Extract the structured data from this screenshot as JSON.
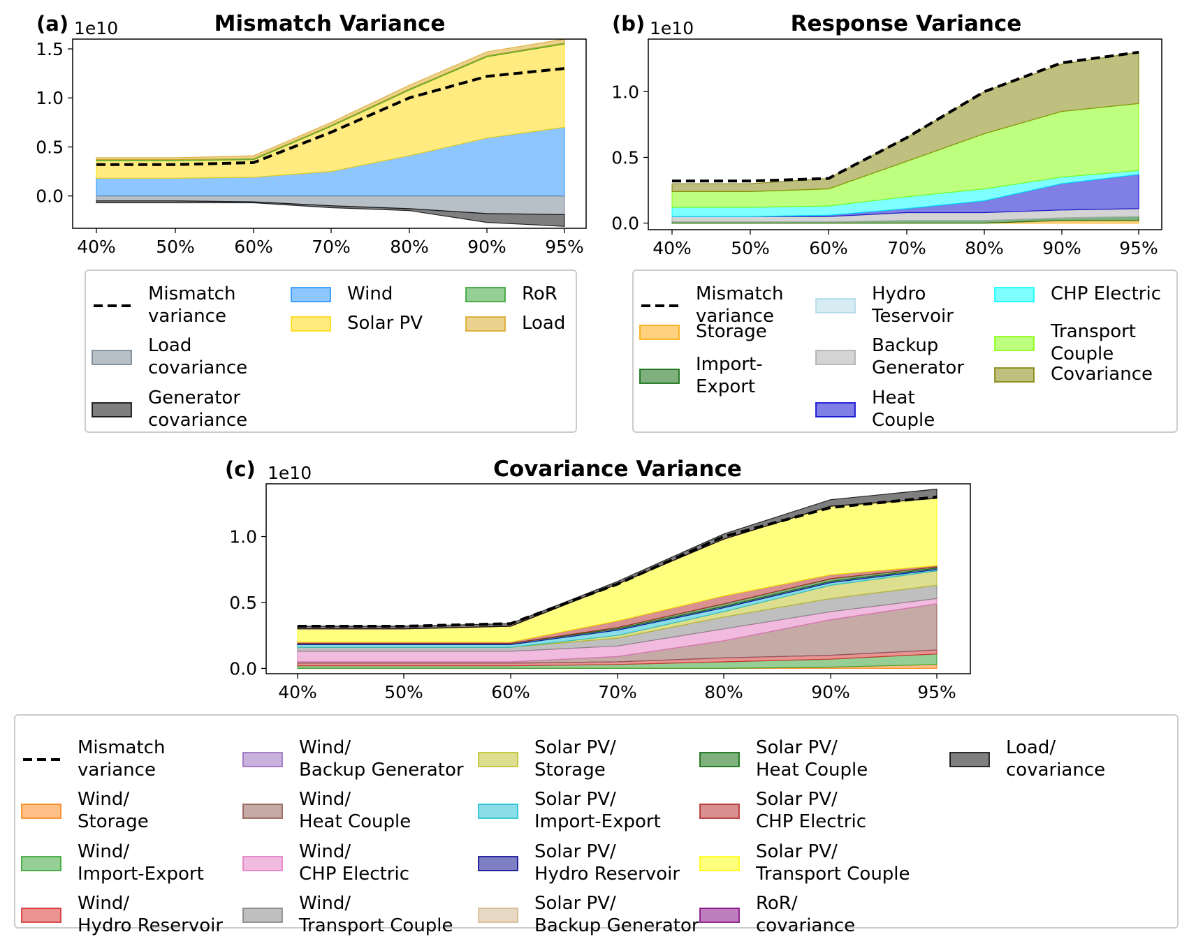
{
  "chart_data": [
    {
      "panel_label": "(a)",
      "type": "area",
      "title": "Mismatch Variance",
      "offset_text": "1e10",
      "x": [
        "40%",
        "50%",
        "60%",
        "70%",
        "80%",
        "90%",
        "95%"
      ],
      "ylim": [
        -0.33,
        1.6
      ],
      "yticks": [
        "0.0",
        "0.5",
        "1.0",
        "1.5"
      ],
      "ytick_values": [
        0.0,
        0.5,
        1.0,
        1.5
      ],
      "grid": false,
      "legend_position": "below",
      "legend_columns": 3,
      "line": {
        "name": "Mismatch\nvariance",
        "values": [
          0.32,
          0.32,
          0.34,
          0.65,
          1.0,
          1.22,
          1.3
        ],
        "color": "#000000"
      },
      "series": [
        {
          "name": "Wind",
          "color": "#1e90ff",
          "values": [
            0.18,
            0.18,
            0.19,
            0.25,
            0.41,
            0.59,
            0.7
          ]
        },
        {
          "name": "Solar PV",
          "color": "#ffd700",
          "values": [
            0.18,
            0.18,
            0.18,
            0.46,
            0.67,
            0.83,
            0.85
          ]
        },
        {
          "name": "RoR",
          "color": "#2ca02c",
          "values": [
            0.01,
            0.01,
            0.01,
            0.01,
            0.01,
            0.01,
            0.01
          ]
        },
        {
          "name": "Load",
          "color": "#daa520",
          "values": [
            0.02,
            0.02,
            0.03,
            0.03,
            0.04,
            0.04,
            0.04
          ]
        },
        {
          "name": "Load\ncovariance",
          "color": "#708090",
          "values": [
            -0.05,
            -0.05,
            -0.06,
            -0.1,
            -0.13,
            -0.18,
            -0.19
          ],
          "negative": true
        },
        {
          "name": "Generator\ncovariance",
          "color": "#000000",
          "values": [
            -0.02,
            -0.02,
            -0.01,
            -0.02,
            -0.02,
            -0.09,
            -0.12
          ],
          "negative": true
        }
      ],
      "legend_order": [
        "Mismatch\nvariance",
        "Load\ncovariance",
        "Generator\ncovariance",
        "Wind",
        "Solar PV",
        "RoR",
        "Load"
      ]
    },
    {
      "panel_label": "(b)",
      "type": "area",
      "title": "Response Variance",
      "offset_text": "1e10",
      "x": [
        "40%",
        "50%",
        "60%",
        "70%",
        "80%",
        "90%",
        "95%"
      ],
      "ylim": [
        -0.05,
        1.4
      ],
      "yticks": [
        "0.0",
        "0.5",
        "1.0"
      ],
      "ytick_values": [
        0.0,
        0.5,
        1.0
      ],
      "grid": false,
      "legend_position": "below",
      "legend_columns": 3,
      "line": {
        "name": "Mismatch\nvariance",
        "values": [
          0.32,
          0.32,
          0.34,
          0.65,
          1.0,
          1.22,
          1.3
        ],
        "color": "#000000"
      },
      "series": [
        {
          "name": "Storage",
          "color": "#ffa500",
          "values": [
            0.0,
            0.0,
            0.0,
            0.0,
            0.0,
            0.02,
            0.02
          ]
        },
        {
          "name": "Import-\nExport",
          "color": "#006400",
          "values": [
            0.01,
            0.01,
            0.01,
            0.02,
            0.02,
            0.02,
            0.03
          ]
        },
        {
          "name": "Hydro\nTeservoir",
          "color": "#add8e6",
          "values": [
            0.0,
            0.0,
            0.0,
            0.0,
            0.0,
            0.0,
            0.0
          ]
        },
        {
          "name": "Backup\nGenerator",
          "color": "#a9a9a9",
          "values": [
            0.04,
            0.04,
            0.04,
            0.06,
            0.06,
            0.06,
            0.06
          ]
        },
        {
          "name": "Heat\nCouple",
          "color": "#0000cd",
          "values": [
            0.0,
            0.0,
            0.01,
            0.03,
            0.09,
            0.2,
            0.26
          ]
        },
        {
          "name": "CHP Electric",
          "color": "#00ffff",
          "values": [
            0.07,
            0.07,
            0.07,
            0.09,
            0.09,
            0.05,
            0.03
          ]
        },
        {
          "name": "Transport\nCouple",
          "color": "#7fff00",
          "values": [
            0.12,
            0.12,
            0.13,
            0.27,
            0.42,
            0.5,
            0.51
          ]
        },
        {
          "name": "Covariance",
          "color": "#808000",
          "values": [
            0.06,
            0.06,
            0.08,
            0.18,
            0.32,
            0.36,
            0.39
          ]
        }
      ],
      "legend_order": [
        "Mismatch\nvariance",
        "Storage",
        "Import-\nExport",
        "Hydro\nTeservoir",
        "Backup\nGenerator",
        "Heat\nCouple",
        "CHP Electric",
        "Transport\nCouple",
        "Covariance"
      ]
    },
    {
      "panel_label": "(c)",
      "type": "area",
      "title": "Covariance Variance",
      "offset_text": "1e10",
      "x": [
        "40%",
        "50%",
        "60%",
        "70%",
        "80%",
        "90%",
        "95%"
      ],
      "ylim": [
        -0.04,
        1.4
      ],
      "yticks": [
        "0.0",
        "0.5",
        "1.0"
      ],
      "ytick_values": [
        0.0,
        0.5,
        1.0
      ],
      "grid": false,
      "legend_position": "below",
      "legend_columns": 5,
      "line": {
        "name": "Mismatch\nvariance",
        "values": [
          0.32,
          0.32,
          0.34,
          0.64,
          1.0,
          1.22,
          1.3
        ],
        "color": "#000000"
      },
      "series": [
        {
          "name": "Wind/\nStorage",
          "color": "#ff7f0e",
          "values": [
            0.0,
            0.0,
            0.0,
            0.0,
            0.0,
            0.01,
            0.03
          ]
        },
        {
          "name": "Wind/\nImport-Export",
          "color": "#2ca02c",
          "values": [
            0.02,
            0.02,
            0.02,
            0.03,
            0.05,
            0.06,
            0.08
          ]
        },
        {
          "name": "Wind/\nHydro Reservoir",
          "color": "#d62728",
          "values": [
            0.02,
            0.02,
            0.02,
            0.02,
            0.03,
            0.03,
            0.03
          ]
        },
        {
          "name": "Wind/\nBackup Generator",
          "color": "#9467bd",
          "values": [
            0.0,
            0.0,
            0.0,
            0.0,
            0.0,
            0.0,
            0.0
          ]
        },
        {
          "name": "Wind/\nHeat Couple",
          "color": "#8c564b",
          "values": [
            0.01,
            0.01,
            0.01,
            0.04,
            0.13,
            0.27,
            0.35
          ]
        },
        {
          "name": "Wind/\nCHP Electric",
          "color": "#e377c2",
          "values": [
            0.08,
            0.08,
            0.08,
            0.08,
            0.09,
            0.06,
            0.04
          ]
        },
        {
          "name": "Wind/\nTransport Couple",
          "color": "#7f7f7f",
          "values": [
            0.03,
            0.03,
            0.03,
            0.06,
            0.09,
            0.1,
            0.1
          ]
        },
        {
          "name": "Solar PV/\nStorage",
          "color": "#bcbd22",
          "values": [
            0.0,
            0.0,
            0.0,
            0.02,
            0.04,
            0.1,
            0.11
          ]
        },
        {
          "name": "Solar PV/\nImport-Export",
          "color": "#17becf",
          "values": [
            0.02,
            0.02,
            0.02,
            0.04,
            0.03,
            0.02,
            0.01
          ]
        },
        {
          "name": "Solar PV/\nHydro Reservoir",
          "color": "#00008b",
          "values": [
            0.01,
            0.01,
            0.01,
            0.01,
            0.01,
            0.01,
            0.01
          ]
        },
        {
          "name": "Solar PV/\nBackup Generator",
          "color": "#d2b48c",
          "values": [
            0.0,
            0.0,
            0.0,
            0.0,
            0.0,
            0.0,
            0.0
          ]
        },
        {
          "name": "Solar PV/\nHeat Couple",
          "color": "#006400",
          "values": [
            0.0,
            0.0,
            0.0,
            0.01,
            0.02,
            0.02,
            0.01
          ]
        },
        {
          "name": "Solar PV/\nCHP Electric",
          "color": "#b22222",
          "values": [
            0.01,
            0.01,
            0.01,
            0.05,
            0.06,
            0.03,
            0.01
          ]
        },
        {
          "name": "Solar PV/\nTransport Couple",
          "color": "#ffff00",
          "values": [
            0.1,
            0.1,
            0.12,
            0.28,
            0.43,
            0.52,
            0.51
          ]
        },
        {
          "name": "RoR/\ncovariance",
          "color": "#800080",
          "values": [
            0.0,
            0.0,
            0.0,
            0.0,
            0.0,
            0.0,
            0.0
          ]
        },
        {
          "name": "Load/\ncovariance",
          "color": "#000000",
          "values": [
            0.02,
            0.02,
            0.02,
            0.02,
            0.04,
            0.05,
            0.07
          ]
        }
      ],
      "legend_order": [
        "Mismatch\nvariance",
        "Wind/\nStorage",
        "Wind/\nImport-Export",
        "Wind/\nHydro Reservoir",
        "Wind/\nBackup Generator",
        "Wind/\nHeat Couple",
        "Wind/\nCHP Electric",
        "Wind/\nTransport Couple",
        "Solar PV/\nStorage",
        "Solar PV/\nImport-Export",
        "Solar PV/\nHydro Reservoir",
        "Solar PV/\nBackup Generator",
        "Solar PV/\nHeat Couple",
        "Solar PV/\nCHP Electric",
        "Solar PV/\nTransport Couple",
        "RoR/\ncovariance",
        "Load/\ncovariance"
      ]
    }
  ]
}
